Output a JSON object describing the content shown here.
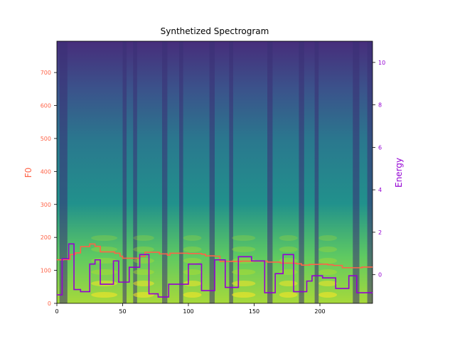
{
  "chart_data": {
    "type": "line",
    "title": "Synthetized Spectrogram",
    "x_axis": {
      "range": [
        0,
        240
      ],
      "ticks": [
        0,
        50,
        100,
        150,
        200
      ],
      "tick_labels": [
        "0",
        "50",
        "100",
        "150",
        "200"
      ]
    },
    "y_axis_left": {
      "label": "F0",
      "range": [
        0,
        795
      ],
      "ticks": [
        0,
        100,
        200,
        300,
        400,
        500,
        600,
        700
      ],
      "tick_labels": [
        "0",
        "100",
        "200",
        "300",
        "400",
        "500",
        "600",
        "700"
      ],
      "color": "#ff6347"
    },
    "y_axis_right": {
      "label": "Energy",
      "range": [
        -1.35,
        11.0
      ],
      "ticks": [
        0,
        2,
        4,
        6,
        8,
        10
      ],
      "tick_labels": [
        "0",
        "2",
        "4",
        "6",
        "8",
        "10"
      ],
      "color": "#9400d3"
    },
    "background": "spectrogram heatmap (viridis colormap)",
    "grid": false,
    "series": [
      {
        "axis": "left",
        "color": "#ff6347",
        "step": true,
        "points": [
          [
            0,
            132
          ],
          [
            5,
            133
          ],
          [
            10,
            148
          ],
          [
            14,
            153
          ],
          [
            18,
            172
          ],
          [
            25,
            180
          ],
          [
            29,
            173
          ],
          [
            33,
            156
          ],
          [
            44,
            152
          ],
          [
            48,
            143
          ],
          [
            50,
            137
          ],
          [
            63,
            142
          ],
          [
            67,
            155
          ],
          [
            75,
            155
          ],
          [
            78,
            150
          ],
          [
            84,
            146
          ],
          [
            86,
            152
          ],
          [
            100,
            151
          ],
          [
            110,
            149
          ],
          [
            113,
            144
          ],
          [
            120,
            143
          ],
          [
            124,
            127
          ],
          [
            140,
            128
          ],
          [
            148,
            128
          ],
          [
            157,
            128
          ],
          [
            160,
            125
          ],
          [
            170,
            122
          ],
          [
            182,
            120
          ],
          [
            186,
            116
          ],
          [
            192,
            118
          ],
          [
            200,
            119
          ],
          [
            206,
            117
          ],
          [
            210,
            115
          ],
          [
            217,
            108
          ],
          [
            232,
            110
          ],
          [
            240,
            110
          ]
        ]
      },
      {
        "axis": "right",
        "color": "#9400d3",
        "step": true,
        "points": [
          [
            0,
            -0.95
          ],
          [
            4,
            0.75
          ],
          [
            9,
            1.45
          ],
          [
            13,
            -0.7
          ],
          [
            18,
            -0.8
          ],
          [
            25,
            0.5
          ],
          [
            29,
            0.7
          ],
          [
            33,
            -0.45
          ],
          [
            43,
            0.65
          ],
          [
            47,
            -0.35
          ],
          [
            55,
            0.35
          ],
          [
            63,
            0.95
          ],
          [
            70,
            -0.9
          ],
          [
            77,
            -1.05
          ],
          [
            85,
            -0.45
          ],
          [
            100,
            0.5
          ],
          [
            110,
            -0.75
          ],
          [
            120,
            0.7
          ],
          [
            128,
            -0.6
          ],
          [
            138,
            0.85
          ],
          [
            148,
            0.65
          ],
          [
            158,
            -0.85
          ],
          [
            166,
            0.05
          ],
          [
            172,
            0.95
          ],
          [
            180,
            -0.8
          ],
          [
            190,
            -0.3
          ],
          [
            194,
            -0.05
          ],
          [
            202,
            -0.15
          ],
          [
            212,
            -0.65
          ],
          [
            222,
            -0.05
          ],
          [
            228,
            -0.85
          ],
          [
            240,
            -0.85
          ]
        ]
      }
    ]
  }
}
